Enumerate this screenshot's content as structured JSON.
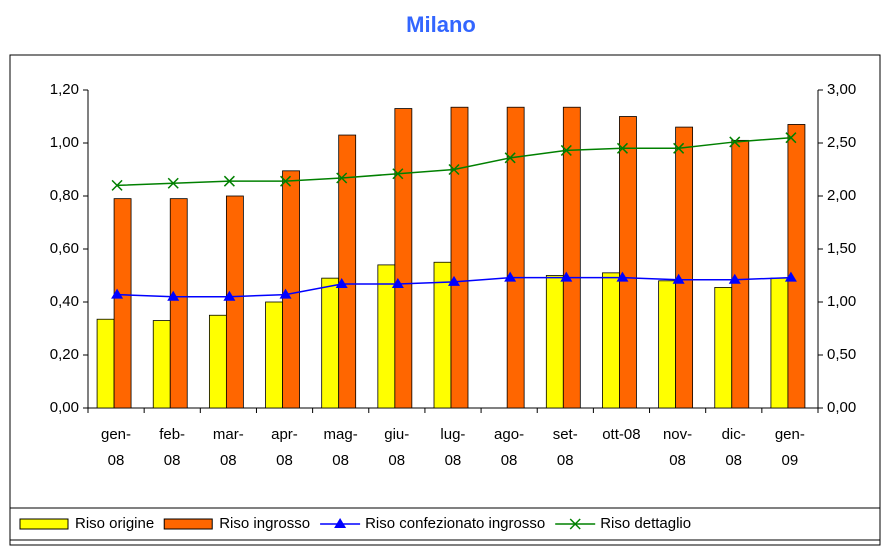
{
  "chart_data": {
    "type": "bar_line",
    "title": "Milano",
    "categories": [
      "gen-\n08",
      "feb-\n08",
      "mar-\n08",
      "apr-\n08",
      "mag-\n08",
      "giu-\n08",
      "lug-\n08",
      "ago-\n08",
      "set-\n08",
      "ott-08",
      "nov-\n08",
      "dic-\n08",
      "gen-\n09"
    ],
    "series": [
      {
        "name": "Riso origine",
        "type": "bar",
        "axis": "y",
        "color": "#ffff00",
        "values": [
          0.335,
          0.33,
          0.35,
          0.4,
          0.49,
          0.54,
          0.55,
          null,
          0.5,
          0.51,
          0.48,
          0.455,
          0.49
        ]
      },
      {
        "name": "Riso ingrosso",
        "type": "bar",
        "axis": "y",
        "color": "#ff6600",
        "values": [
          0.79,
          0.79,
          0.8,
          0.895,
          1.03,
          1.13,
          1.135,
          1.135,
          1.135,
          1.1,
          1.06,
          1.01,
          1.07
        ]
      },
      {
        "name": "Riso confezionato ingrosso",
        "type": "line",
        "marker": "triangle",
        "axis": "y2",
        "color": "#0000ff",
        "values": [
          1.07,
          1.05,
          1.05,
          1.07,
          1.17,
          1.17,
          1.19,
          1.23,
          1.23,
          1.23,
          1.21,
          1.21,
          1.23
        ]
      },
      {
        "name": "Riso dettaglio",
        "type": "line",
        "marker": "x",
        "axis": "y2",
        "color": "#008000",
        "values": [
          2.1,
          2.12,
          2.14,
          2.14,
          2.17,
          2.21,
          2.25,
          2.36,
          2.43,
          2.45,
          2.45,
          2.51,
          2.55
        ]
      }
    ],
    "ylim": [
      0,
      1.2
    ],
    "yticks": [
      {
        "value": 0,
        "label": "0,00"
      },
      {
        "value": 0.2,
        "label": "0,20"
      },
      {
        "value": 0.4,
        "label": "0,40"
      },
      {
        "value": 0.6,
        "label": "0,60"
      },
      {
        "value": 0.8,
        "label": "0,80"
      },
      {
        "value": 1.0,
        "label": "1,00"
      },
      {
        "value": 1.2,
        "label": "1,20"
      }
    ],
    "y2lim": [
      0,
      3
    ],
    "y2ticks": [
      {
        "value": 0,
        "label": "0,00"
      },
      {
        "value": 0.5,
        "label": "0,50"
      },
      {
        "value": 1.0,
        "label": "1,00"
      },
      {
        "value": 1.5,
        "label": "1,50"
      },
      {
        "value": 2.0,
        "label": "2,00"
      },
      {
        "value": 2.5,
        "label": "2,50"
      },
      {
        "value": 3.0,
        "label": "3,00"
      }
    ],
    "grid": false,
    "legend": "bottom"
  }
}
